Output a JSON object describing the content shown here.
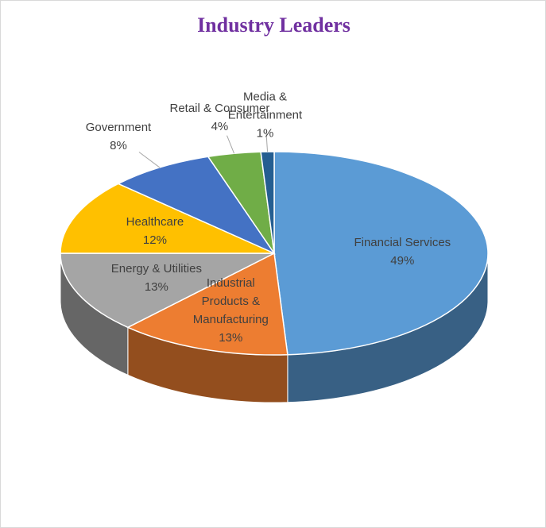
{
  "chart_data": {
    "type": "pie",
    "title": "Industry Leaders",
    "categories": [
      "Financial Services",
      "Industrial Products & Manufacturing",
      "Energy & Utilities",
      "Healthcare",
      "Government",
      "Retail & Consumer",
      "Media & Entertainment"
    ],
    "values": [
      49,
      13,
      13,
      12,
      8,
      4,
      1
    ],
    "value_labels": [
      "49%",
      "13%",
      "13%",
      "12%",
      "8%",
      "4%",
      "1%"
    ],
    "colors": [
      "#5b9bd5",
      "#ed7d31",
      "#a5a5a5",
      "#ffc000",
      "#4472c4",
      "#70ad47",
      "#255e91"
    ]
  }
}
